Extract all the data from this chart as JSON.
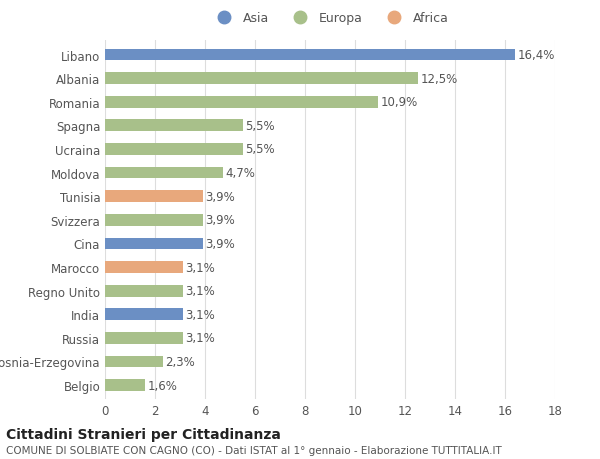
{
  "categories": [
    "Belgio",
    "Bosnia-Erzegovina",
    "Russia",
    "India",
    "Regno Unito",
    "Marocco",
    "Cina",
    "Svizzera",
    "Tunisia",
    "Moldova",
    "Ucraina",
    "Spagna",
    "Romania",
    "Albania",
    "Libano"
  ],
  "values": [
    1.6,
    2.3,
    3.1,
    3.1,
    3.1,
    3.1,
    3.9,
    3.9,
    3.9,
    4.7,
    5.5,
    5.5,
    10.9,
    12.5,
    16.4
  ],
  "labels": [
    "1,6%",
    "2,3%",
    "3,1%",
    "3,1%",
    "3,1%",
    "3,1%",
    "3,9%",
    "3,9%",
    "3,9%",
    "4,7%",
    "5,5%",
    "5,5%",
    "10,9%",
    "12,5%",
    "16,4%"
  ],
  "colors": [
    "#a8c08a",
    "#a8c08a",
    "#a8c08a",
    "#6b8fc4",
    "#a8c08a",
    "#e8a87c",
    "#6b8fc4",
    "#a8c08a",
    "#e8a87c",
    "#a8c08a",
    "#a8c08a",
    "#a8c08a",
    "#a8c08a",
    "#a8c08a",
    "#6b8fc4"
  ],
  "legend_labels": [
    "Asia",
    "Europa",
    "Africa"
  ],
  "legend_colors": [
    "#6b8fc4",
    "#a8c08a",
    "#e8a87c"
  ],
  "title1": "Cittadini Stranieri per Cittadinanza",
  "title2": "COMUNE DI SOLBIATE CON CAGNO (CO) - Dati ISTAT al 1° gennaio - Elaborazione TUTTITALIA.IT",
  "xlim": [
    0,
    18
  ],
  "xticks": [
    0,
    2,
    4,
    6,
    8,
    10,
    12,
    14,
    16,
    18
  ],
  "background_color": "#ffffff",
  "grid_color": "#dddddd",
  "bar_height": 0.5,
  "label_fontsize": 8.5,
  "tick_fontsize": 8.5,
  "title1_fontsize": 10,
  "title2_fontsize": 7.5
}
